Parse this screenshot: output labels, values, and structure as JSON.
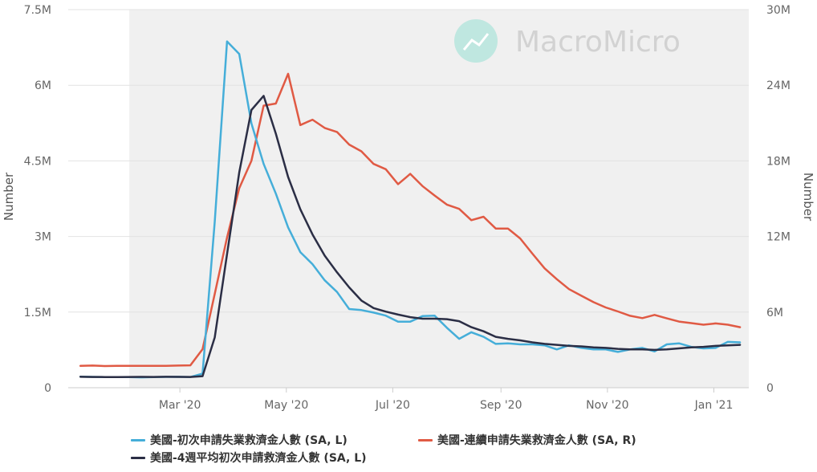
{
  "brand": {
    "name": "MacroMicro"
  },
  "colors": {
    "initial": "#45AED9",
    "continued": "#E05A44",
    "avg4w": "#2B2E45",
    "brand_icon": "#BFE7E0"
  },
  "chart_data": {
    "type": "line",
    "x": [
      "2020-01-04",
      "2020-01-11",
      "2020-01-18",
      "2020-01-25",
      "2020-02-01",
      "2020-02-08",
      "2020-02-15",
      "2020-02-22",
      "2020-02-29",
      "2020-03-07",
      "2020-03-14",
      "2020-03-21",
      "2020-03-28",
      "2020-04-04",
      "2020-04-11",
      "2020-04-18",
      "2020-04-25",
      "2020-05-02",
      "2020-05-09",
      "2020-05-16",
      "2020-05-23",
      "2020-05-30",
      "2020-06-06",
      "2020-06-13",
      "2020-06-20",
      "2020-06-27",
      "2020-07-04",
      "2020-07-11",
      "2020-07-18",
      "2020-07-25",
      "2020-08-01",
      "2020-08-08",
      "2020-08-15",
      "2020-08-22",
      "2020-08-29",
      "2020-09-05",
      "2020-09-12",
      "2020-09-19",
      "2020-09-26",
      "2020-10-03",
      "2020-10-10",
      "2020-10-17",
      "2020-10-24",
      "2020-10-31",
      "2020-11-07",
      "2020-11-14",
      "2020-11-21",
      "2020-11-28",
      "2020-12-05",
      "2020-12-12",
      "2020-12-19",
      "2020-12-26",
      "2021-01-02",
      "2021-01-09",
      "2021-01-16"
    ],
    "series": [
      {
        "name": "美國-初次申請失業救濟金人數 (SA, L)",
        "axis": "left",
        "values": [
          220000,
          215000,
          210000,
          212000,
          210000,
          205000,
          212000,
          215000,
          217000,
          211000,
          280000,
          3300000,
          6870000,
          6620000,
          5240000,
          4440000,
          3850000,
          3180000,
          2690000,
          2450000,
          2130000,
          1900000,
          1560000,
          1540000,
          1490000,
          1430000,
          1310000,
          1310000,
          1420000,
          1430000,
          1190000,
          970000,
          1100000,
          1010000,
          870000,
          880000,
          860000,
          860000,
          840000,
          760000,
          840000,
          790000,
          760000,
          760000,
          710000,
          760000,
          790000,
          720000,
          860000,
          880000,
          810000,
          780000,
          790000,
          910000,
          900000
        ]
      },
      {
        "name": "美國-連續申請失業救濟金人數 (SA, R)",
        "axis": "right",
        "values": [
          1730000,
          1760000,
          1720000,
          1740000,
          1740000,
          1730000,
          1730000,
          1730000,
          1760000,
          1780000,
          3060000,
          7450000,
          11920000,
          15830000,
          18010000,
          22380000,
          22550000,
          24910000,
          20840000,
          21270000,
          20610000,
          20290000,
          19290000,
          18760000,
          17760000,
          17340000,
          16150000,
          16970000,
          16000000,
          15250000,
          14530000,
          14190000,
          13290000,
          13570000,
          12630000,
          12630000,
          11840000,
          10640000,
          9470000,
          8610000,
          7820000,
          7300000,
          6790000,
          6370000,
          6050000,
          5710000,
          5520000,
          5780000,
          5500000,
          5250000,
          5130000,
          5000000,
          5100000,
          5000000,
          4800000
        ]
      },
      {
        "name": "美國-4週平均初次申請救濟金人數 (SA, L)",
        "axis": "left",
        "values": [
          217000,
          214000,
          212000,
          212000,
          213000,
          215000,
          214000,
          216000,
          215000,
          214000,
          230000,
          1000000,
          2650000,
          4270000,
          5510000,
          5790000,
          5040000,
          4180000,
          3540000,
          3040000,
          2620000,
          2290000,
          1990000,
          1730000,
          1580000,
          1510000,
          1450000,
          1400000,
          1370000,
          1370000,
          1360000,
          1320000,
          1200000,
          1120000,
          1010000,
          970000,
          940000,
          900000,
          870000,
          850000,
          830000,
          820000,
          800000,
          790000,
          770000,
          760000,
          760000,
          750000,
          760000,
          780000,
          800000,
          810000,
          830000,
          840000,
          850000
        ]
      }
    ],
    "left_axis": {
      "label": "Number",
      "ylim": [
        0,
        7500000
      ],
      "tick_labels": [
        "0",
        "1.5M",
        "3M",
        "4.5M",
        "6M",
        "7.5M"
      ]
    },
    "right_axis": {
      "label": "Number",
      "ylim": [
        0,
        30000000
      ],
      "tick_labels": [
        "0",
        "6M",
        "12M",
        "18M",
        "24M",
        "30M"
      ]
    },
    "x_tick_labels": [
      {
        "date": "2020-03-01",
        "label": "Mar '20"
      },
      {
        "date": "2020-05-01",
        "label": "May '20"
      },
      {
        "date": "2020-07-01",
        "label": "Jul '20"
      },
      {
        "date": "2020-09-01",
        "label": "Sep '20"
      },
      {
        "date": "2020-11-01",
        "label": "Nov '20"
      },
      {
        "date": "2021-01-01",
        "label": "Jan '21"
      }
    ],
    "x_range": [
      "2019-12-28",
      "2021-01-21"
    ],
    "shaded_band": [
      "2020-02-01",
      "2021-01-21"
    ],
    "grid": true,
    "legend_position": "bottom"
  }
}
